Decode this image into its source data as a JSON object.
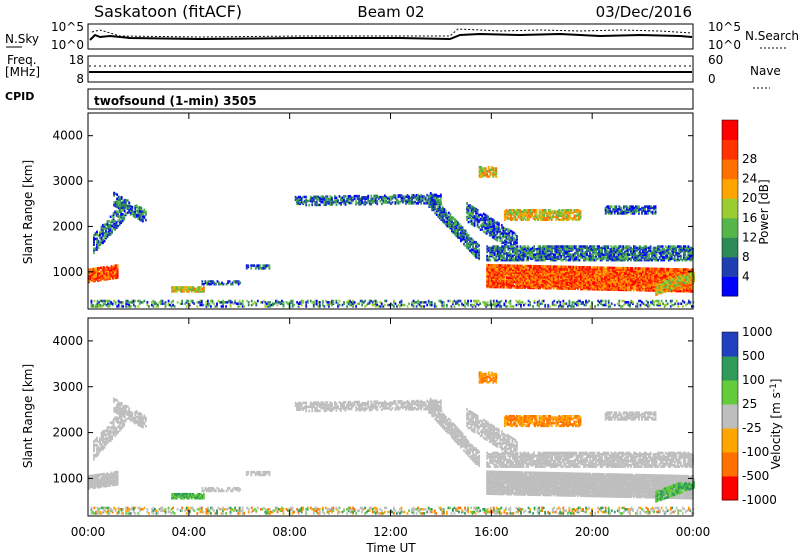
{
  "header": {
    "station": "Saskatoon (fitACF)",
    "beam": "Beam 02",
    "date": "03/Dec/2016"
  },
  "summary": {
    "nsky_label": "N.Sky",
    "nsky_ticks": [
      "10^5",
      "10^0"
    ],
    "nsearch_label": "N.Search",
    "nsearch_ticks": [
      "10^5",
      "10^0"
    ],
    "freq_label_1": "Freq.",
    "freq_label_2": "[MHz]",
    "freq_ticks": [
      "18",
      "8"
    ],
    "nave_label": "Nave",
    "nave_ticks": [
      "60",
      "0"
    ],
    "cpid_label": "CPID",
    "cpid_text": "twofsound (1-min) 3505"
  },
  "colors": {
    "power": [
      "#0000ff",
      "#1f3fb0",
      "#2e8b57",
      "#55b74b",
      "#9acd32",
      "#ffa500",
      "#ff7000",
      "#ff3300",
      "#ff0000"
    ],
    "velocity": [
      "#2040c0",
      "#2f9a5a",
      "#62cc3a",
      "#bebebe",
      "#ffa500",
      "#ff7000",
      "#ff0000"
    ],
    "ground_scatter": "#bebebe"
  },
  "chart_data": [
    {
      "type": "heatmap",
      "name": "Power",
      "ylabel": "Slant Range [km]",
      "xlabel": "Time UT",
      "x_ticks": [
        "00:00",
        "04:00",
        "08:00",
        "12:00",
        "16:00",
        "20:00",
        "00:00"
      ],
      "y_ticks": [
        1000,
        2000,
        3000,
        4000
      ],
      "ylim": [
        180,
        4500
      ],
      "colorbar_label": "Power [dB]",
      "colorbar_ticks": [
        4,
        8,
        12,
        16,
        20,
        24,
        28
      ],
      "colorbar_range": [
        0,
        30
      ]
    },
    {
      "type": "heatmap",
      "name": "Velocity",
      "ylabel": "Slant Range [km]",
      "xlabel": "Time UT",
      "x_ticks": [
        "00:00",
        "04:00",
        "08:00",
        "12:00",
        "16:00",
        "20:00",
        "00:00"
      ],
      "y_ticks": [
        1000,
        2000,
        3000,
        4000
      ],
      "ylim": [
        180,
        4500
      ],
      "colorbar_label": "Velocity [m s^-1]",
      "colorbar_ticks": [
        1000,
        500,
        100,
        25,
        -25,
        -100,
        -500,
        -1000
      ]
    }
  ]
}
